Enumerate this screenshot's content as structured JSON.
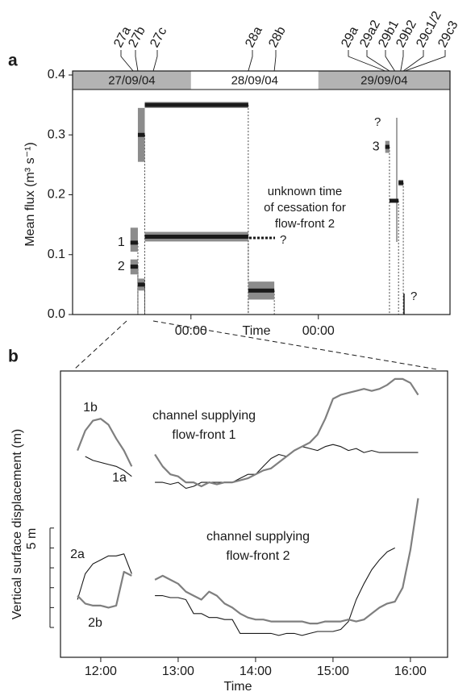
{
  "chart_data": [
    {
      "type": "segment",
      "panel_label": "a",
      "xlabel": "Time",
      "ylabel": "Mean flux (m³ s⁻¹)",
      "xlim": [
        1.7,
        72.8
      ],
      "xticks": [
        {
          "value": 24,
          "label": "00:00"
        },
        {
          "value": 48,
          "label": "00:00"
        }
      ],
      "ylim": [
        0,
        0.4
      ],
      "yticks": [
        {
          "value": 0,
          "label": "0.0"
        },
        0.1,
        0.2,
        0.3,
        0.4
      ],
      "date_bands": [
        {
          "label": "27/09/04",
          "start": 1.7,
          "end": 24,
          "shaded": true
        },
        {
          "label": "28/09/04",
          "start": 24,
          "end": 48,
          "shaded": false
        },
        {
          "label": "29/09/04",
          "start": 48,
          "end": 72.8,
          "shaded": true
        }
      ],
      "events": [
        {
          "label": "27a",
          "time": 13.1
        },
        {
          "label": "27b",
          "time": 14.0
        },
        {
          "label": "27c",
          "time": 16.9
        },
        {
          "label": "28a",
          "time": 34.8
        },
        {
          "label": "28b",
          "time": 39.7
        },
        {
          "label": "29a",
          "time": 60.6
        },
        {
          "label": "29a2",
          "time": 61.4
        },
        {
          "label": "29b1",
          "time": 62.4
        },
        {
          "label": "29b2",
          "time": 63.5
        },
        {
          "label": "29c1/2",
          "time": 64.0
        },
        {
          "label": "29c3",
          "time": 64.3
        }
      ],
      "bar_color": "#1a1a1a",
      "range_color": "#8c8c8c",
      "segments": [
        {
          "start": 12.6,
          "end": 14.0,
          "value": 0.12,
          "low": 0.105,
          "high": 0.145,
          "label": "1"
        },
        {
          "start": 12.6,
          "end": 14.0,
          "value": 0.08,
          "low": 0.067,
          "high": 0.092,
          "label": "2"
        },
        {
          "start": 14.0,
          "end": 15.3,
          "value": 0.05,
          "low": 0.04,
          "high": 0.06
        },
        {
          "start": 14.0,
          "end": 15.3,
          "value": 0.3,
          "low": 0.255,
          "high": 0.345
        },
        {
          "start": 15.3,
          "end": 34.8,
          "value": 0.35,
          "low": 0.345,
          "high": 0.355
        },
        {
          "start": 15.3,
          "end": 34.8,
          "value": 0.13,
          "low": 0.122,
          "high": 0.138
        },
        {
          "start": 34.8,
          "end": 39.7,
          "value": 0.04,
          "low": 0.025,
          "high": 0.055
        },
        {
          "start": 60.6,
          "end": 61.4,
          "value": 0.28,
          "low": 0.27,
          "high": 0.29,
          "label": "3"
        },
        {
          "start": 61.4,
          "end": 63.1,
          "value": 0.19,
          "low": 0.188,
          "high": 0.192
        },
        {
          "start": 63.1,
          "end": 64.0,
          "value": 0.22,
          "low": 0.215,
          "high": 0.225
        }
      ],
      "annotation": [
        "unknown time",
        "of cessation for",
        "flow-front 2"
      ],
      "unknown_marks": [
        "?",
        "?",
        "?"
      ]
    },
    {
      "type": "line",
      "panel_label": "b",
      "xlabel": "Time",
      "ylabel": "Vertical surface displacement (m)",
      "xlim": [
        11.48,
        16.48
      ],
      "xticks": [
        {
          "value": 12,
          "label": "12:00"
        },
        {
          "value": 13,
          "label": "13:00"
        },
        {
          "value": 14,
          "label": "14:00"
        },
        {
          "value": 15,
          "label": "15:00"
        },
        {
          "value": 16,
          "label": "16:00"
        }
      ],
      "ylim": [
        0.8,
        15.2
      ],
      "scale_bar": {
        "label": "5 m",
        "ticks": [
          2.3,
          3.3,
          4.3,
          5.3,
          6.3,
          7.3
        ]
      },
      "x": [
        11.7,
        11.8,
        11.9,
        12.0,
        12.1,
        12.2,
        12.3,
        12.4,
        12.5,
        12.6,
        12.7,
        12.8,
        12.9,
        13.0,
        13.1,
        13.2,
        13.3,
        13.4,
        13.5,
        13.6,
        13.7,
        13.8,
        13.9,
        14.0,
        14.1,
        14.2,
        14.3,
        14.4,
        14.5,
        14.6,
        14.7,
        14.8,
        14.9,
        15.0,
        15.1,
        15.2,
        15.3,
        15.4,
        15.5,
        15.6,
        15.7,
        15.8,
        15.9,
        16.0,
        16.1
      ],
      "series": [
        {
          "name": "1a",
          "color": "#1a1a1a",
          "values": [
            null,
            10.9,
            10.7,
            10.6,
            10.5,
            10.4,
            10.2,
            9.9,
            null,
            null,
            9.6,
            9.6,
            9.5,
            9.6,
            9.3,
            9.4,
            9.6,
            9.6,
            9.6,
            9.6,
            9.6,
            9.8,
            10.0,
            10.0,
            10.4,
            10.8,
            11.0,
            10.9,
            11.2,
            11.4,
            11.3,
            11.2,
            11.4,
            11.5,
            11.4,
            11.2,
            11.3,
            11.1,
            11.2,
            11.1,
            11.1,
            11.1,
            11.1,
            11.1,
            11.1
          ]
        },
        {
          "name": "1b",
          "color": "#7f7f7f",
          "values": [
            11.2,
            12.2,
            12.7,
            12.8,
            12.5,
            11.8,
            11.2,
            10.4,
            null,
            null,
            11.0,
            10.4,
            10.0,
            9.9,
            9.6,
            9.6,
            9.4,
            9.6,
            9.5,
            9.6,
            9.6,
            9.7,
            9.8,
            10.0,
            10.2,
            10.3,
            10.6,
            10.9,
            11.2,
            11.4,
            11.6,
            12.0,
            12.8,
            13.8,
            14.0,
            14.1,
            14.2,
            14.3,
            14.2,
            14.3,
            14.5,
            14.8,
            14.8,
            14.6,
            14.0
          ]
        },
        {
          "name": "2a",
          "color": "#1a1a1a",
          "values": [
            3.7,
            5.0,
            5.5,
            5.7,
            5.9,
            5.9,
            6.0,
            5.0,
            null,
            null,
            3.9,
            3.9,
            3.8,
            3.8,
            3.7,
            3.0,
            3.0,
            2.8,
            2.8,
            2.7,
            2.7,
            2.0,
            2.0,
            2.0,
            2.0,
            2.0,
            1.9,
            2.0,
            2.0,
            1.9,
            2.0,
            2.1,
            2.1,
            2.1,
            2.2,
            2.6,
            3.7,
            4.5,
            5.2,
            5.7,
            6.1,
            6.3,
            null,
            null,
            null
          ]
        },
        {
          "name": "2b",
          "color": "#7f7f7f",
          "values": [
            3.9,
            3.5,
            3.4,
            3.4,
            3.3,
            3.4,
            5.1,
            4.9,
            null,
            null,
            4.7,
            4.9,
            4.7,
            4.5,
            4.1,
            3.9,
            3.7,
            4.1,
            3.9,
            3.5,
            3.3,
            3.0,
            2.8,
            2.7,
            2.7,
            2.6,
            2.6,
            2.6,
            2.6,
            2.6,
            2.5,
            2.5,
            2.6,
            2.6,
            2.6,
            2.7,
            2.6,
            2.7,
            3.0,
            3.3,
            3.5,
            3.6,
            4.3,
            6.2,
            8.8
          ]
        }
      ],
      "annotations": [
        [
          "channel supplying",
          "flow-front 1"
        ],
        [
          "channel supplying",
          "flow-front 2"
        ]
      ]
    }
  ]
}
